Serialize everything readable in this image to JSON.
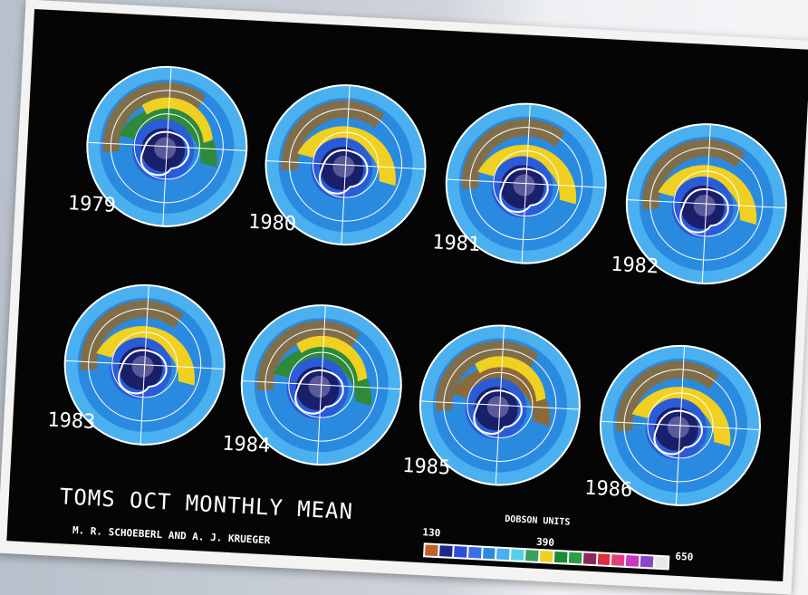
{
  "title": "TOMS OCT MONTHLY MEAN",
  "authors": "M. R. SCHOEBERL AND A. J. KRUEGER",
  "legend": {
    "title": "DOBSON UNITS",
    "ticks": [
      "130",
      "390",
      "650"
    ],
    "colors": [
      "#c0602a",
      "#1a2a8a",
      "#2a4cd8",
      "#3a6ee8",
      "#2a8ae0",
      "#4ab0f0",
      "#5ad0e8",
      "#3aa060",
      "#f0d020",
      "#1a8a3a",
      "#2aa040",
      "#8b2a5a",
      "#d83040",
      "#e04080",
      "#c838c8",
      "#8848c8",
      "#e8e8e8"
    ]
  },
  "maps": [
    {
      "year": "1979",
      "ring": "green"
    },
    {
      "year": "1980",
      "ring": "yellow"
    },
    {
      "year": "1981",
      "ring": "yellow"
    },
    {
      "year": "1982",
      "ring": "yellow"
    },
    {
      "year": "1983",
      "ring": "yellow"
    },
    {
      "year": "1984",
      "ring": "green"
    },
    {
      "year": "1985",
      "ring": "brown"
    },
    {
      "year": "1986",
      "ring": "yellow"
    }
  ],
  "colors": {
    "background": "#050505",
    "ocean_blue": "#2a8ae0",
    "light_blue": "#4ab0f0",
    "hole_dark": "#1a1f6a",
    "hole_core": "#5a5a9a",
    "ring_yellow": "#f0d020",
    "ring_green": "#2e8a3a",
    "ring_brown": "#8a6a3a",
    "gridline": "#ffffff"
  }
}
